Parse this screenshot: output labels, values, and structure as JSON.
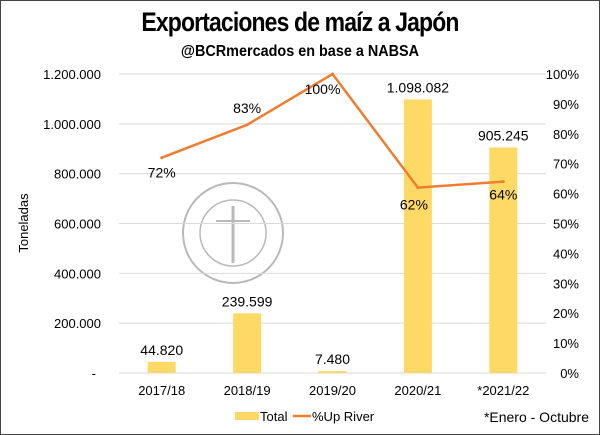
{
  "chart_data": {
    "type": "bar",
    "title": "Exportaciones de maíz a Japón",
    "subtitle": "@BCRmercados en base a NABSA",
    "ylabel": "Toneladas",
    "categories": [
      "2017/18",
      "2018/19",
      "2019/20",
      "2020/21",
      "*2021/22"
    ],
    "series": [
      {
        "name": "Total",
        "type": "bar",
        "axis": "left",
        "color": "#FFD966",
        "values": [
          44820,
          239599,
          7480,
          1098082,
          905245
        ],
        "labels": [
          "44.820",
          "239.599",
          "7.480",
          "1.098.082",
          "905.245"
        ]
      },
      {
        "name": "%Up River",
        "type": "line",
        "axis": "right",
        "color": "#ED7D31",
        "values": [
          72,
          83,
          100,
          62,
          64
        ],
        "labels": [
          "72%",
          "83%",
          "100%",
          "62%",
          "64%"
        ]
      }
    ],
    "ylim": [
      0,
      1200000
    ],
    "y2lim": [
      0,
      100
    ],
    "yticks": [
      "-",
      "200.000",
      "400.000",
      "600.000",
      "800.000",
      "1.000.000",
      "1.200.000"
    ],
    "y2ticks": [
      "0%",
      "10%",
      "20%",
      "30%",
      "40%",
      "50%",
      "60%",
      "70%",
      "80%",
      "90%",
      "100%"
    ],
    "legend": [
      "Total",
      "%Up River"
    ],
    "legend_position": "bottom",
    "note": "*Enero - Octubre",
    "grid": true
  }
}
